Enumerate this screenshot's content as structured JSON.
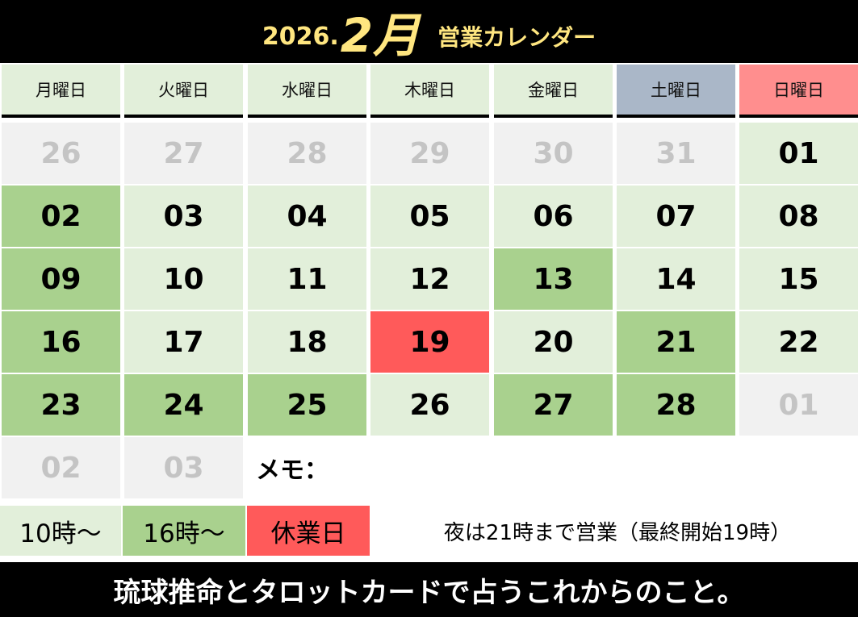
{
  "header": {
    "year_label": "2026.",
    "month_label": "2月",
    "title": "営業カレンダー"
  },
  "weekdays": [
    "月曜日",
    "火曜日",
    "水曜日",
    "木曜日",
    "金曜日",
    "土曜日",
    "日曜日"
  ],
  "weeks": [
    [
      {
        "d": "26",
        "s": "other"
      },
      {
        "d": "27",
        "s": "other"
      },
      {
        "d": "28",
        "s": "other"
      },
      {
        "d": "29",
        "s": "other"
      },
      {
        "d": "30",
        "s": "other"
      },
      {
        "d": "31",
        "s": "other"
      },
      {
        "d": "01",
        "s": "base"
      }
    ],
    [
      {
        "d": "02",
        "s": "green"
      },
      {
        "d": "03",
        "s": "base"
      },
      {
        "d": "04",
        "s": "base"
      },
      {
        "d": "05",
        "s": "base"
      },
      {
        "d": "06",
        "s": "base"
      },
      {
        "d": "07",
        "s": "base"
      },
      {
        "d": "08",
        "s": "base"
      }
    ],
    [
      {
        "d": "09",
        "s": "green"
      },
      {
        "d": "10",
        "s": "base"
      },
      {
        "d": "11",
        "s": "base"
      },
      {
        "d": "12",
        "s": "base"
      },
      {
        "d": "13",
        "s": "green"
      },
      {
        "d": "14",
        "s": "base"
      },
      {
        "d": "15",
        "s": "base"
      }
    ],
    [
      {
        "d": "16",
        "s": "green"
      },
      {
        "d": "17",
        "s": "base"
      },
      {
        "d": "18",
        "s": "base"
      },
      {
        "d": "19",
        "s": "red"
      },
      {
        "d": "20",
        "s": "base"
      },
      {
        "d": "21",
        "s": "green"
      },
      {
        "d": "22",
        "s": "base"
      }
    ],
    [
      {
        "d": "23",
        "s": "green"
      },
      {
        "d": "24",
        "s": "green"
      },
      {
        "d": "25",
        "s": "green"
      },
      {
        "d": "26",
        "s": "base"
      },
      {
        "d": "27",
        "s": "green"
      },
      {
        "d": "28",
        "s": "green"
      },
      {
        "d": "01",
        "s": "other"
      }
    ],
    [
      {
        "d": "02",
        "s": "other"
      },
      {
        "d": "03",
        "s": "other"
      }
    ]
  ],
  "memo_label": "メモ：",
  "legend": {
    "items": [
      {
        "label": "10時〜",
        "color": "#e2efda"
      },
      {
        "label": "16時〜",
        "color": "#a9d18e"
      },
      {
        "label": "休業日",
        "color": "#ff5a5a"
      }
    ],
    "note": "夜は21時まで営業（最終開始19時）"
  },
  "footer": {
    "text": "琉球推命とタロットカードで占うこれからのこと。"
  },
  "colors": {
    "header_text": "#ffe680",
    "base": "#e2efda",
    "green": "#a9d18e",
    "red": "#ff5a5a",
    "other": "#f1f1f1",
    "saturday": "#aab7c8",
    "sunday": "#ff8e8e"
  }
}
